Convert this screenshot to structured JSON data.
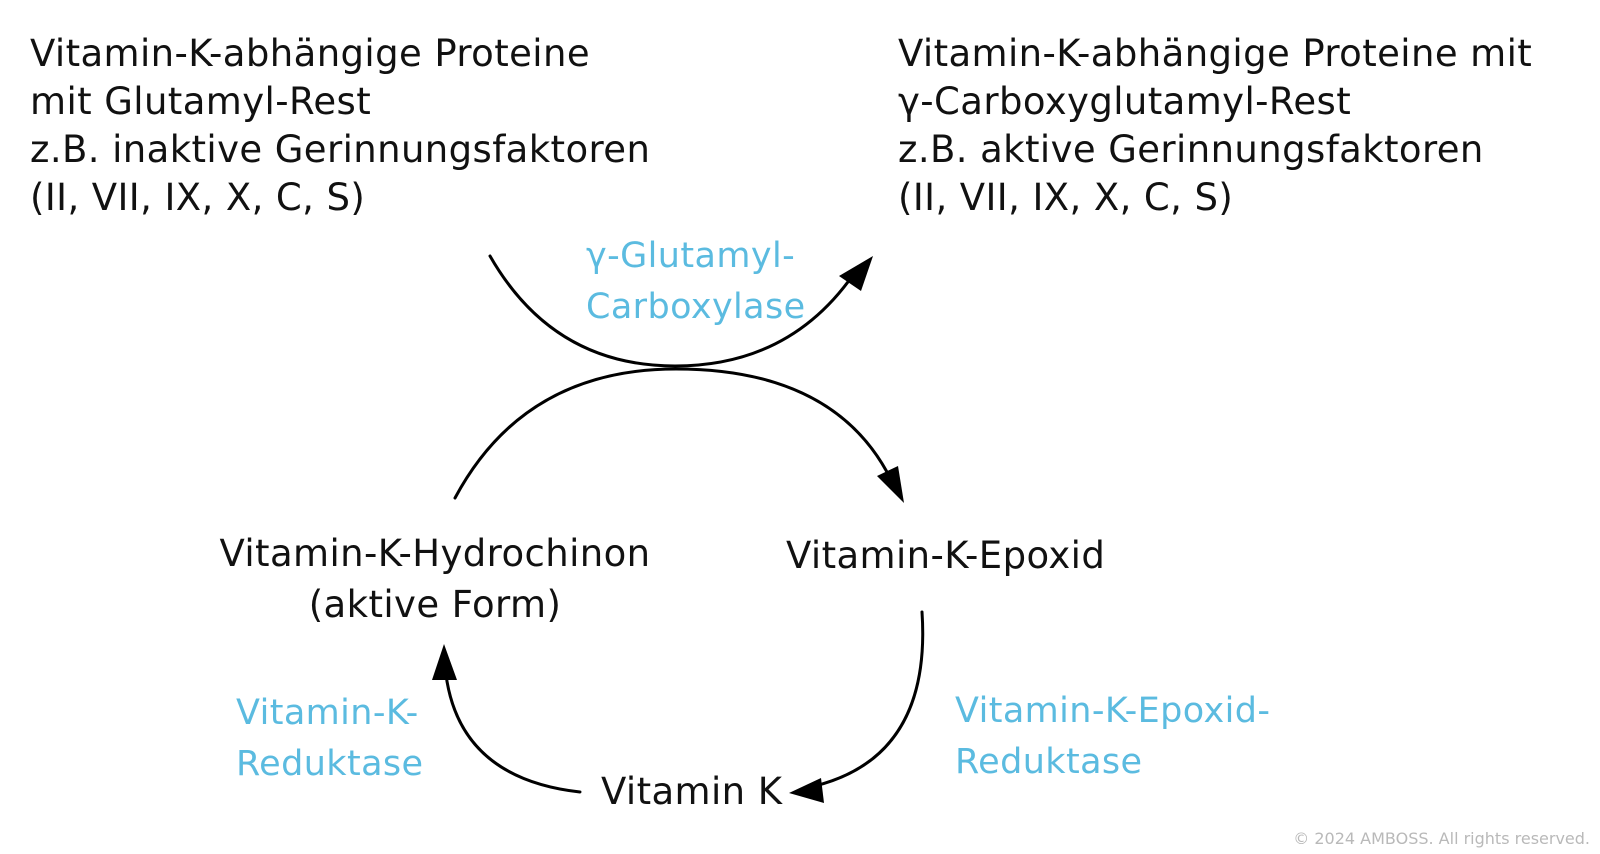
{
  "colors": {
    "text": "#111111",
    "enzyme": "#5bbbe0",
    "arrow": "#000000",
    "copyright": "#b9b9b9"
  },
  "proteins_left": {
    "lines": [
      "Vitamin-K-abhängige Proteine",
      "mit Glutamyl-Rest",
      "z.B. inaktive Gerinnungsfaktoren",
      "(II, VII, IX, X, C, S)"
    ]
  },
  "proteins_right": {
    "lines": [
      "Vitamin-K-abhängige Proteine mit",
      "γ-Carboxyglutamyl-Rest",
      "z.B. aktive Gerinnungsfaktoren",
      "(II, VII, IX, X, C, S)"
    ]
  },
  "nodes": {
    "hydrochinon": [
      "Vitamin-K-Hydrochinon",
      "(aktive Form)"
    ],
    "epoxid": "Vitamin-K-Epoxid",
    "vitamin_k": "Vitamin K"
  },
  "enzymes": {
    "carboxylase": [
      "γ-Glutamyl-",
      "Carboxylase"
    ],
    "reduktase": [
      "Vitamin-K-",
      "Reduktase"
    ],
    "epoxid_reduktase": [
      "Vitamin-K-Epoxid-",
      "Reduktase"
    ]
  },
  "copyright": "© 2024 AMBOSS. All rights reserved."
}
